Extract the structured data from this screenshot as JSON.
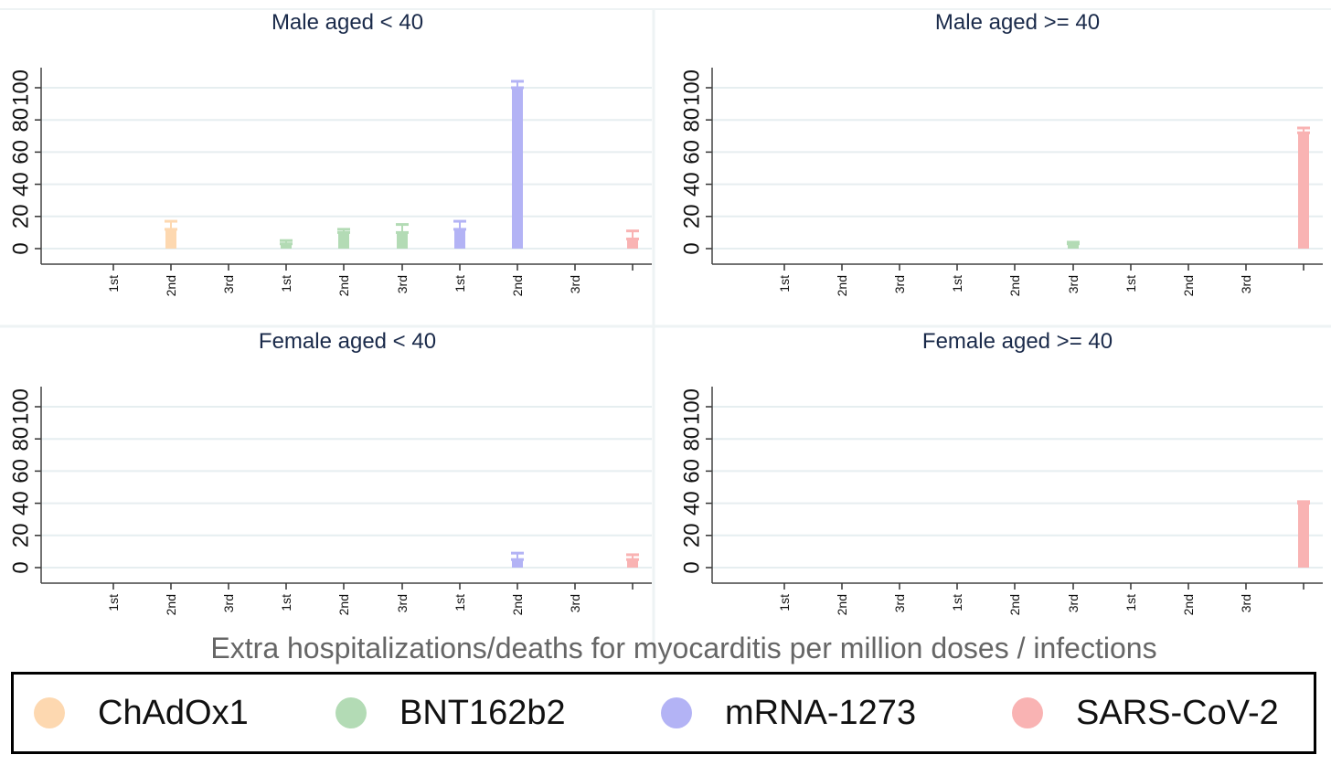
{
  "chart_data": {
    "type": "bar",
    "x_title": "Extra hospitalizations/deaths for myocarditis per million doses / infections",
    "y_ticks": [
      "0",
      "20",
      "40",
      "60",
      "80",
      "100"
    ],
    "ylim": [
      0,
      110
    ],
    "grid": true,
    "categories": [
      {
        "label": "1st",
        "group": "ChAdOx1"
      },
      {
        "label": "2nd",
        "group": "ChAdOx1"
      },
      {
        "label": "3rd",
        "group": "ChAdOx1"
      },
      {
        "label": "1st",
        "group": "BNT162b2"
      },
      {
        "label": "2nd",
        "group": "BNT162b2"
      },
      {
        "label": "3rd",
        "group": "BNT162b2"
      },
      {
        "label": "1st",
        "group": "mRNA-1273"
      },
      {
        "label": "2nd",
        "group": "mRNA-1273"
      },
      {
        "label": "3rd",
        "group": "mRNA-1273"
      },
      {
        "label": "",
        "group": "SARS-CoV-2"
      }
    ],
    "panels": [
      {
        "title": "Male aged < 40",
        "values": [
          null,
          12,
          null,
          3,
          10,
          10,
          12,
          100,
          null,
          6
        ],
        "upper": [
          null,
          17,
          null,
          5,
          12,
          15,
          17,
          104,
          null,
          11
        ]
      },
      {
        "title": "Male aged >= 40",
        "values": [
          null,
          null,
          null,
          null,
          null,
          3,
          null,
          null,
          null,
          72
        ],
        "upper": [
          null,
          null,
          null,
          null,
          null,
          4,
          null,
          null,
          null,
          75
        ]
      },
      {
        "title": "Female aged < 40",
        "values": [
          null,
          null,
          null,
          null,
          null,
          null,
          null,
          5,
          null,
          5
        ],
        "upper": [
          null,
          null,
          null,
          null,
          null,
          null,
          null,
          9,
          null,
          8
        ]
      },
      {
        "title": "Female aged >= 40",
        "values": [
          null,
          null,
          null,
          null,
          null,
          null,
          null,
          null,
          null,
          40
        ],
        "upper": [
          null,
          null,
          null,
          null,
          null,
          null,
          null,
          null,
          null,
          41
        ]
      }
    ]
  },
  "legend": [
    {
      "name": "ChAdOx1",
      "color": "#fdd8b0"
    },
    {
      "name": "BNT162b2",
      "color": "#b3dbb5"
    },
    {
      "name": "mRNA-1273",
      "color": "#b3b3f5"
    },
    {
      "name": "SARS-CoV-2",
      "color": "#f9b3b3"
    }
  ],
  "colors": {
    "ChAdOx1": "#fdd8b0",
    "BNT162b2": "#b3dbb5",
    "mRNA-1273": "#b3b3f5",
    "SARS-CoV-2": "#f9b3b3",
    "title": "#1a2a4a",
    "grid": "#e6eef0"
  }
}
